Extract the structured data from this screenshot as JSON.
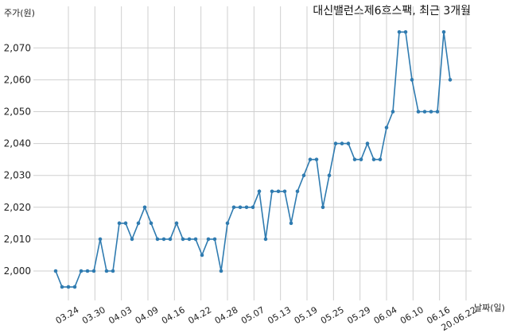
{
  "chart_data": {
    "type": "line",
    "title": "대신밸런스제6호스팩, 최근 3개월",
    "ylabel": "주가(원)",
    "xlabel": "날짜(일)",
    "ylim": [
      1992,
      2080
    ],
    "yticks": [
      2000,
      2010,
      2020,
      2030,
      2040,
      2050,
      2060,
      2070
    ],
    "ytick_labels": [
      "2,000",
      "2,010",
      "2,020",
      "2,030",
      "2,040",
      "2,050",
      "2,060",
      "2,070"
    ],
    "xtick_labels": [
      "03.24",
      "03.30",
      "04.03",
      "04.09",
      "04.16",
      "04.22",
      "04.28",
      "05.07",
      "05.13",
      "05.19",
      "05.25",
      "05.29",
      "06.04",
      "06.10",
      "06.16",
      "20.06.22"
    ],
    "grid": true,
    "line_color": "#2f7bb0",
    "series": [
      {
        "values": [
          2000,
          1995,
          1995,
          1995,
          2000,
          2000,
          2000,
          2010,
          2000,
          2000,
          2015,
          2015,
          2010,
          2015,
          2020,
          2015,
          2010,
          2010,
          2010,
          2015,
          2010,
          2010,
          2010,
          2005,
          2010,
          2010,
          2000,
          2015,
          2020,
          2020,
          2020,
          2020,
          2025,
          2010,
          2025,
          2025,
          2025,
          2015,
          2025,
          2030,
          2035,
          2035,
          2020,
          2030,
          2040,
          2040,
          2040,
          2035,
          2035,
          2040,
          2035,
          2035,
          2045,
          2050,
          2075,
          2075,
          2060,
          2050,
          2050,
          2050,
          2050,
          2075,
          2060
        ]
      }
    ]
  }
}
